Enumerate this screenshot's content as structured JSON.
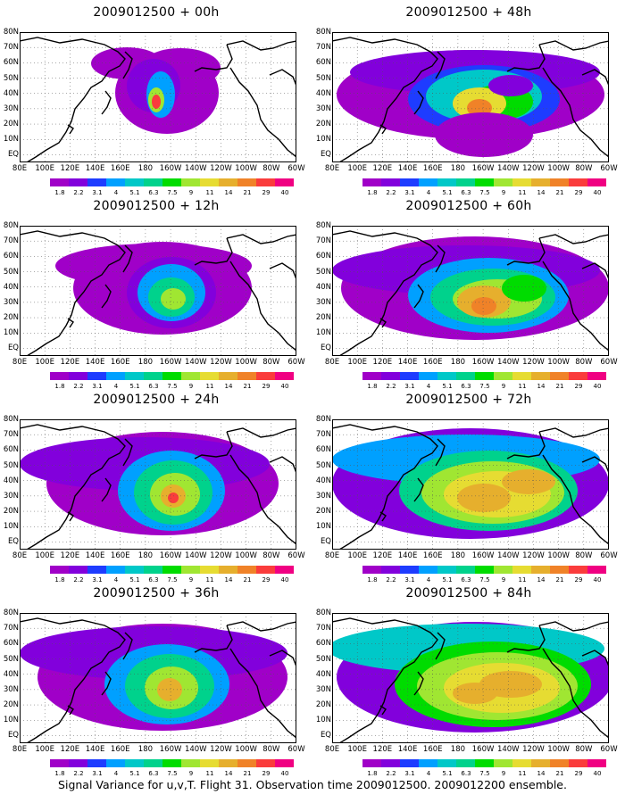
{
  "panels": [
    {
      "title": "2009012500 + 00h"
    },
    {
      "title": "2009012500 + 48h"
    },
    {
      "title": "2009012500 + 12h"
    },
    {
      "title": "2009012500 + 60h"
    },
    {
      "title": "2009012500 + 24h"
    },
    {
      "title": "2009012500 + 72h"
    },
    {
      "title": "2009012500 + 36h"
    },
    {
      "title": "2009012500 + 84h"
    }
  ],
  "lat_labels": [
    "80N",
    "70N",
    "60N",
    "50N",
    "40N",
    "30N",
    "20N",
    "10N",
    "EQ"
  ],
  "lon_labels": [
    "80E",
    "100E",
    "120E",
    "140E",
    "160E",
    "180",
    "160W",
    "140W",
    "120W",
    "100W",
    "80W",
    "60W"
  ],
  "colorbar": {
    "ticks": [
      "1.8",
      "2.2",
      "3.1",
      "4",
      "5.1",
      "6.3",
      "7.5",
      "9",
      "11",
      "14",
      "21",
      "29",
      "40"
    ],
    "colors": [
      "#a000c8",
      "#8200dc",
      "#1e3cff",
      "#00a0ff",
      "#00c8c8",
      "#00d28c",
      "#00dc00",
      "#a0e632",
      "#e6dc32",
      "#e6af2d",
      "#f08228",
      "#fa3c3c",
      "#f00082"
    ]
  },
  "caption": "Signal Variance for u,v,T. Flight 31. Observation time 2009012500. 2009012200 ensemble."
}
